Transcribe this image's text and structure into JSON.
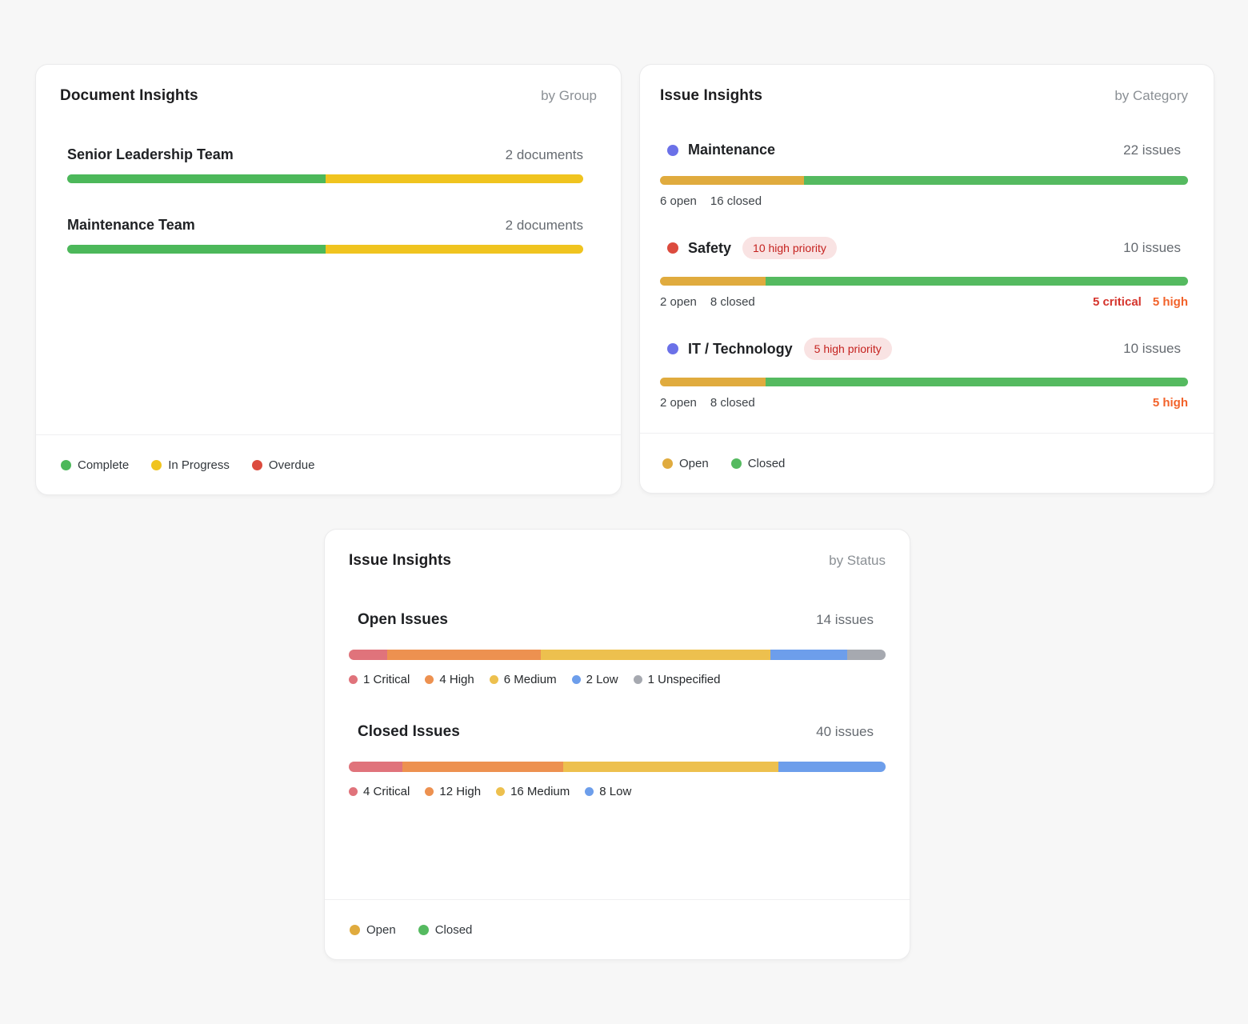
{
  "colors": {
    "background": "#f7f7f7",
    "card_background": "#ffffff",
    "complete_green": "#4cb85a",
    "in_progress_yellow": "#f0c41f",
    "overdue_red": "#dc4b3e",
    "open_amber": "#e0ab3e",
    "closed_green": "#55ba60",
    "category_dot_indigo": "#6b71e8",
    "category_dot_red": "#dc4b3e",
    "critical_segment": "#e0737b",
    "high_segment": "#ed9150",
    "medium_segment": "#edc04e",
    "low_segment": "#6d9eeb",
    "unspecified_segment": "#a6a9b0",
    "badge_background": "#f9e3e3",
    "badge_text": "#c5221f",
    "critical_text": "#d5342c",
    "high_text": "#f2622a"
  },
  "cards": [
    {
      "id": "documents",
      "title": "Document Insights",
      "subtitle": "by Group",
      "rows": [
        {
          "label": "Senior Leadership Team",
          "count": "2 documents",
          "bar": [
            {
              "name": "complete",
              "value": 1,
              "pct": 50,
              "color": "#4cb85a"
            },
            {
              "name": "in-progress",
              "value": 1,
              "pct": 50,
              "color": "#f0c41f"
            }
          ]
        },
        {
          "label": "Maintenance Team",
          "count": "2 documents",
          "bar": [
            {
              "name": "complete",
              "value": 1,
              "pct": 50,
              "color": "#4cb85a"
            },
            {
              "name": "in-progress",
              "value": 1,
              "pct": 50,
              "color": "#f0c41f"
            }
          ]
        }
      ],
      "footer_legend": [
        {
          "label": "Complete",
          "color": "#4cb85a"
        },
        {
          "label": "In Progress",
          "color": "#f0c41f"
        },
        {
          "label": "Overdue",
          "color": "#dc4b3e"
        }
      ]
    },
    {
      "id": "issues-category",
      "title": "Issue Insights",
      "subtitle": "by Category",
      "rows": [
        {
          "dot": "#6b71e8",
          "label": "Maintenance",
          "count": "22 issues",
          "bar": [
            {
              "name": "open",
              "value": 6,
              "pct": 27.3,
              "color": "#e0ab3e"
            },
            {
              "name": "closed",
              "value": 16,
              "pct": 72.7,
              "color": "#55ba60"
            }
          ],
          "sub_left": [
            "6 open",
            "16 closed"
          ],
          "sub_right": []
        },
        {
          "dot": "#dc4b3e",
          "label": "Safety",
          "badge": "10 high priority",
          "count": "10 issues",
          "bar": [
            {
              "name": "open",
              "value": 2,
              "pct": 20,
              "color": "#e0ab3e"
            },
            {
              "name": "closed",
              "value": 8,
              "pct": 80,
              "color": "#55ba60"
            }
          ],
          "sub_left": [
            "2 open",
            "8 closed"
          ],
          "sub_right": [
            {
              "text": "5 critical",
              "color": "#d5342c"
            },
            {
              "text": "5 high",
              "color": "#f2622a"
            }
          ]
        },
        {
          "dot": "#6b71e8",
          "label": "IT / Technology",
          "badge": "5 high priority",
          "count": "10 issues",
          "bar": [
            {
              "name": "open",
              "value": 2,
              "pct": 20,
              "color": "#e0ab3e"
            },
            {
              "name": "closed",
              "value": 8,
              "pct": 80,
              "color": "#55ba60"
            }
          ],
          "sub_left": [
            "2 open",
            "8 closed"
          ],
          "sub_right": [
            {
              "text": "5 high",
              "color": "#f2622a"
            }
          ]
        }
      ],
      "footer_legend": [
        {
          "label": "Open",
          "color": "#e0ab3e"
        },
        {
          "label": "Closed",
          "color": "#55ba60"
        }
      ]
    },
    {
      "id": "issues-status",
      "title": "Issue Insights",
      "subtitle": "by Status",
      "rows": [
        {
          "label": "Open Issues",
          "count": "14 issues",
          "bar": [
            {
              "name": "critical",
              "value": 1,
              "pct": 7.1,
              "color": "#e0737b"
            },
            {
              "name": "high",
              "value": 4,
              "pct": 28.6,
              "color": "#ed9150"
            },
            {
              "name": "medium",
              "value": 6,
              "pct": 42.9,
              "color": "#edc04e"
            },
            {
              "name": "low",
              "value": 2,
              "pct": 14.3,
              "color": "#6d9eeb"
            },
            {
              "name": "unspecified",
              "value": 1,
              "pct": 7.1,
              "color": "#a6a9b0"
            }
          ],
          "inline_legend": [
            {
              "label": "1 Critical",
              "color": "#e0737b"
            },
            {
              "label": "4 High",
              "color": "#ed9150"
            },
            {
              "label": "6 Medium",
              "color": "#edc04e"
            },
            {
              "label": "2 Low",
              "color": "#6d9eeb"
            },
            {
              "label": "1 Unspecified",
              "color": "#a6a9b0"
            }
          ]
        },
        {
          "label": "Closed Issues",
          "count": "40 issues",
          "bar": [
            {
              "name": "critical",
              "value": 4,
              "pct": 10,
              "color": "#e0737b"
            },
            {
              "name": "high",
              "value": 12,
              "pct": 30,
              "color": "#ed9150"
            },
            {
              "name": "medium",
              "value": 16,
              "pct": 40,
              "color": "#edc04e"
            },
            {
              "name": "low",
              "value": 8,
              "pct": 20,
              "color": "#6d9eeb"
            }
          ],
          "inline_legend": [
            {
              "label": "4 Critical",
              "color": "#e0737b"
            },
            {
              "label": "12 High",
              "color": "#ed9150"
            },
            {
              "label": "16 Medium",
              "color": "#edc04e"
            },
            {
              "label": "8 Low",
              "color": "#6d9eeb"
            }
          ]
        }
      ],
      "footer_legend": [
        {
          "label": "Open",
          "color": "#e0ab3e"
        },
        {
          "label": "Closed",
          "color": "#55ba60"
        }
      ]
    }
  ]
}
